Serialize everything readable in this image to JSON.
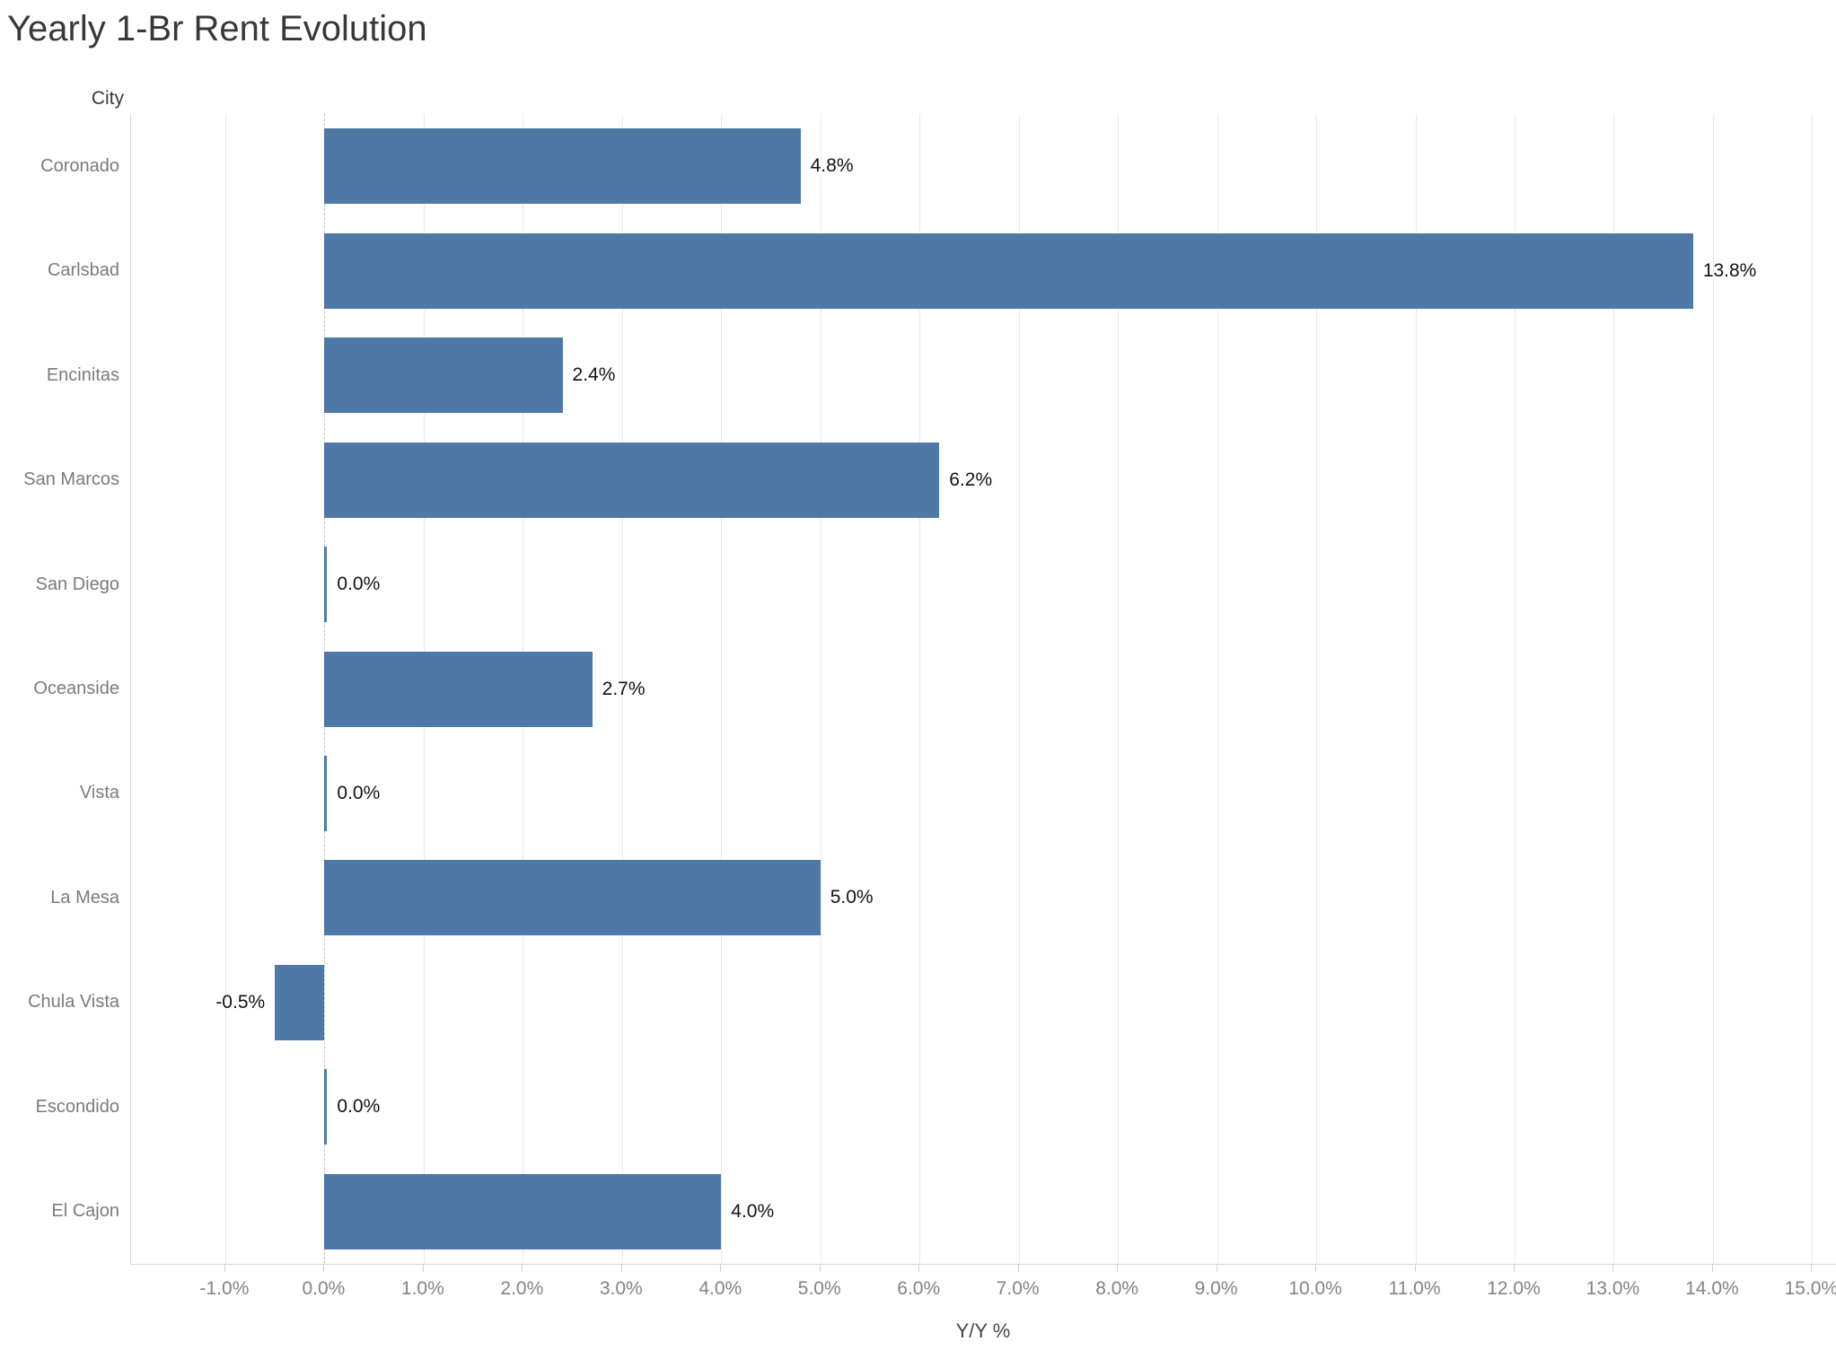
{
  "chart_data": {
    "type": "bar",
    "orientation": "horizontal",
    "title": "Yearly 1-Br Rent Evolution",
    "category_axis_label": "City",
    "value_axis_label": "Y/Y %",
    "categories": [
      "Coronado",
      "Carlsbad",
      "Encinitas",
      "San Marcos",
      "San Diego",
      "Oceanside",
      "Vista",
      "La Mesa",
      "Chula Vista",
      "Escondido",
      "El Cajon"
    ],
    "values": [
      4.8,
      13.8,
      2.4,
      6.2,
      0.0,
      2.7,
      0.0,
      5.0,
      -0.5,
      0.0,
      4.0
    ],
    "value_labels": [
      "4.8%",
      "13.8%",
      "2.4%",
      "6.2%",
      "0.0%",
      "2.7%",
      "0.0%",
      "5.0%",
      "-0.5%",
      "0.0%",
      "4.0%"
    ],
    "xlim": [
      -1.95,
      15.25
    ],
    "xtick_values": [
      -1,
      0,
      1,
      2,
      3,
      4,
      5,
      6,
      7,
      8,
      9,
      10,
      11,
      12,
      13,
      14,
      15
    ],
    "xtick_labels": [
      "-1.0%",
      "0.0%",
      "1.0%",
      "2.0%",
      "3.0%",
      "4.0%",
      "5.0%",
      "6.0%",
      "7.0%",
      "8.0%",
      "9.0%",
      "10.0%",
      "11.0%",
      "12.0%",
      "13.0%",
      "14.0%",
      "15.0%"
    ],
    "bar_color": "#4e79a7",
    "grid": true,
    "zero_line": "dashed",
    "legend": "none"
  }
}
